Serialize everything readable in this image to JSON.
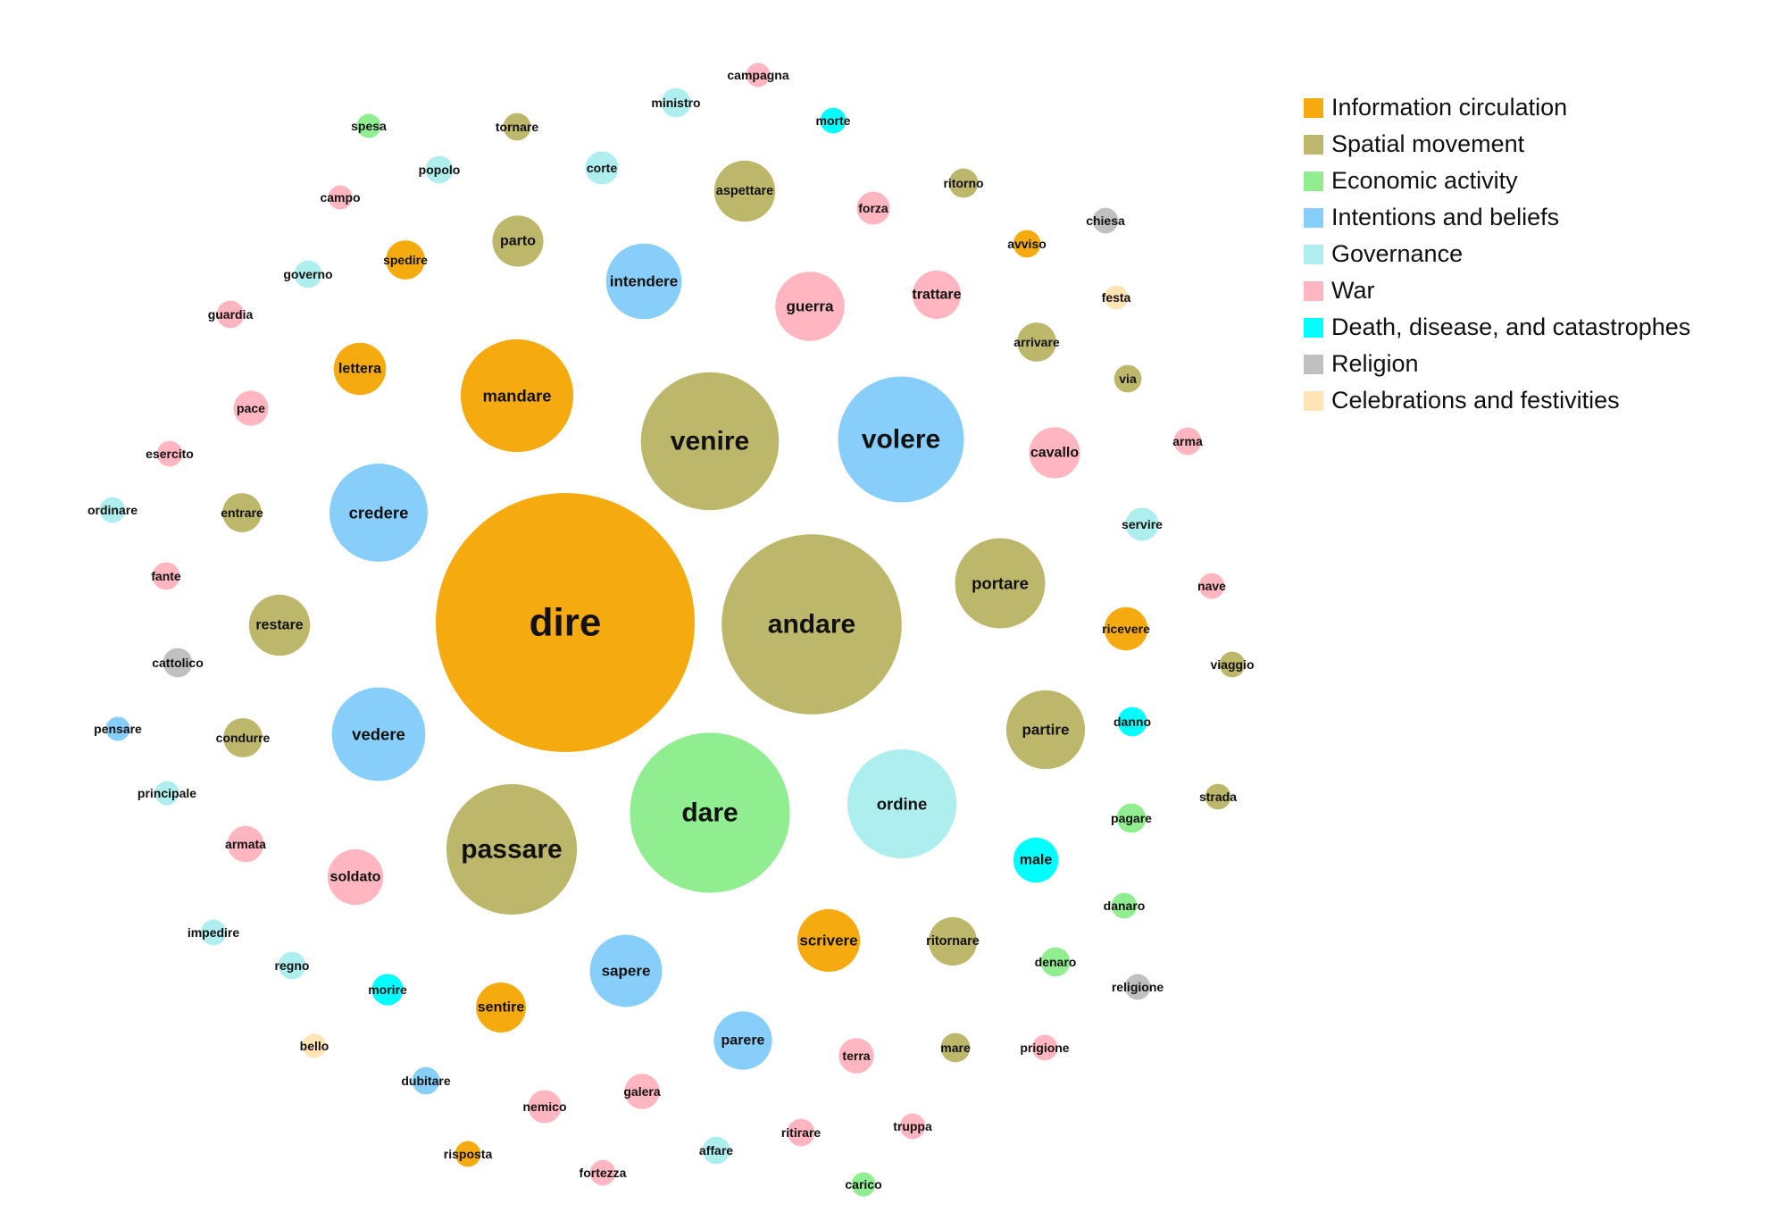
{
  "chart_data": {
    "type": "bubble",
    "categories": [
      {
        "name": "Information circulation",
        "color": "#F5AB10"
      },
      {
        "name": "Spatial movement",
        "color": "#BDB76B"
      },
      {
        "name": "Economic activity",
        "color": "#90EE90"
      },
      {
        "name": "Intentions and beliefs",
        "color": "#87CEFA"
      },
      {
        "name": "Governance",
        "color": "#AFEEEE"
      },
      {
        "name": "War",
        "color": "#FFB6C1"
      },
      {
        "name": "Death, disease, and catastrophes",
        "color": "#00FFFF"
      },
      {
        "name": "Religion",
        "color": "#C0C0C0"
      },
      {
        "name": "Celebrations and festivities",
        "color": "#FFE4B5"
      }
    ],
    "words": [
      {
        "word": "dire",
        "category": "Information circulation",
        "size": 100
      },
      {
        "word": "andare",
        "category": "Spatial movement",
        "size": 69.5
      },
      {
        "word": "dare",
        "category": "Economic activity",
        "size": 61.8
      },
      {
        "word": "venire",
        "category": "Spatial movement",
        "size": 53.3
      },
      {
        "word": "ordine",
        "category": "Governance",
        "size": 42.1
      },
      {
        "word": "passare",
        "category": "Spatial movement",
        "size": 50.4
      },
      {
        "word": "volere",
        "category": "Intentions and beliefs",
        "size": 48.6
      },
      {
        "word": "mandare",
        "category": "Information circulation",
        "size": 43.5
      },
      {
        "word": "credere",
        "category": "Intentions and beliefs",
        "size": 37.9
      },
      {
        "word": "vedere",
        "category": "Intentions and beliefs",
        "size": 36.1
      },
      {
        "word": "portare",
        "category": "Spatial movement",
        "size": 34.8
      },
      {
        "word": "partire",
        "category": "Spatial movement",
        "size": 30.4
      },
      {
        "word": "sapere",
        "category": "Intentions and beliefs",
        "size": 27.9
      },
      {
        "word": "intendere",
        "category": "Intentions and beliefs",
        "size": 29.2
      },
      {
        "word": "guerra",
        "category": "War",
        "size": 26.7
      },
      {
        "word": "restare",
        "category": "Spatial movement",
        "size": 23.6
      },
      {
        "word": "aspettare",
        "category": "Spatial movement",
        "size": 23.6
      },
      {
        "word": "scrivere",
        "category": "Information circulation",
        "size": 24.2
      },
      {
        "word": "parere",
        "category": "Intentions and beliefs",
        "size": 22.5
      },
      {
        "word": "soldato",
        "category": "War",
        "size": 21.5
      },
      {
        "word": "ritornare",
        "category": "Spatial movement",
        "size": 18.7
      },
      {
        "word": "parto",
        "category": "Spatial movement",
        "size": 19.7
      },
      {
        "word": "trattare",
        "category": "War",
        "size": 18.7
      },
      {
        "word": "cavallo",
        "category": "War",
        "size": 19.7
      },
      {
        "word": "lettera",
        "category": "Information circulation",
        "size": 20.2
      },
      {
        "word": "ricevere",
        "category": "Information circulation",
        "size": 16.7
      },
      {
        "word": "sentire",
        "category": "Information circulation",
        "size": 19.3
      },
      {
        "word": "male",
        "category": "Death, disease, and catastrophes",
        "size": 17.4
      },
      {
        "word": "arrivare",
        "category": "Spatial movement",
        "size": 15.1
      },
      {
        "word": "forza",
        "category": "War",
        "size": 12.8
      },
      {
        "word": "galera",
        "category": "War",
        "size": 13.6
      },
      {
        "word": "armata",
        "category": "War",
        "size": 14.0
      },
      {
        "word": "pace",
        "category": "War",
        "size": 13.5
      },
      {
        "word": "entrare",
        "category": "Spatial movement",
        "size": 15.1
      },
      {
        "word": "condurre",
        "category": "Spatial movement",
        "size": 15.1
      },
      {
        "word": "spedire",
        "category": "Information circulation",
        "size": 15.1
      },
      {
        "word": "terra",
        "category": "War",
        "size": 13.6
      },
      {
        "word": "nemico",
        "category": "War",
        "size": 12.8
      },
      {
        "word": "servire",
        "category": "Governance",
        "size": 12.8
      },
      {
        "word": "corte",
        "category": "Governance",
        "size": 12.8
      },
      {
        "word": "ritorno",
        "category": "Spatial movement",
        "size": 11.3
      },
      {
        "word": "pagare",
        "category": "Economic activity",
        "size": 11.3
      },
      {
        "word": "ministro",
        "category": "Governance",
        "size": 11.3
      },
      {
        "word": "cattolico",
        "category": "Religion",
        "size": 11.3
      },
      {
        "word": "morire",
        "category": "Death, disease, and catastrophes",
        "size": 12.1
      },
      {
        "word": "regno",
        "category": "Governance",
        "size": 10.6
      },
      {
        "word": "tornare",
        "category": "Spatial movement",
        "size": 10.6
      },
      {
        "word": "popolo",
        "category": "Governance",
        "size": 10.6
      },
      {
        "word": "governo",
        "category": "Governance",
        "size": 10.6
      },
      {
        "word": "guardia",
        "category": "War",
        "size": 10.6
      },
      {
        "word": "esercito",
        "category": "War",
        "size": 9.9
      },
      {
        "word": "fante",
        "category": "War",
        "size": 10.6
      },
      {
        "word": "ordinare",
        "category": "Governance",
        "size": 9.9
      },
      {
        "word": "principale",
        "category": "Governance",
        "size": 9.3
      },
      {
        "word": "pensare",
        "category": "Intentions and beliefs",
        "size": 9.3
      },
      {
        "word": "impedire",
        "category": "Governance",
        "size": 9.9
      },
      {
        "word": "morte",
        "category": "Death, disease, and catastrophes",
        "size": 9.9
      },
      {
        "word": "campagna",
        "category": "War",
        "size": 9.3
      },
      {
        "word": "chiesa",
        "category": "Religion",
        "size": 9.9
      },
      {
        "word": "festa",
        "category": "Celebrations and festivities",
        "size": 9.3
      },
      {
        "word": "avviso",
        "category": "Information circulation",
        "size": 10.6
      },
      {
        "word": "via",
        "category": "Spatial movement",
        "size": 10.6
      },
      {
        "word": "arma",
        "category": "War",
        "size": 10.6
      },
      {
        "word": "nave",
        "category": "War",
        "size": 9.9
      },
      {
        "word": "viaggio",
        "category": "Spatial movement",
        "size": 9.9
      },
      {
        "word": "danno",
        "category": "Death, disease, and catastrophes",
        "size": 11.3
      },
      {
        "word": "strada",
        "category": "Spatial movement",
        "size": 9.9
      },
      {
        "word": "danaro",
        "category": "Economic activity",
        "size": 9.9
      },
      {
        "word": "denaro",
        "category": "Economic activity",
        "size": 11.3
      },
      {
        "word": "religione",
        "category": "Religion",
        "size": 9.9
      },
      {
        "word": "prigione",
        "category": "War",
        "size": 9.9
      },
      {
        "word": "mare",
        "category": "Spatial movement",
        "size": 11.3
      },
      {
        "word": "truppa",
        "category": "War",
        "size": 9.9
      },
      {
        "word": "carico",
        "category": "Economic activity",
        "size": 9.3
      },
      {
        "word": "ritirare",
        "category": "War",
        "size": 10.6
      },
      {
        "word": "affare",
        "category": "Governance",
        "size": 10.6
      },
      {
        "word": "fortezza",
        "category": "War",
        "size": 9.9
      },
      {
        "word": "risposta",
        "category": "Information circulation",
        "size": 9.9
      },
      {
        "word": "dubitare",
        "category": "Intentions and beliefs",
        "size": 10.6
      },
      {
        "word": "bello",
        "category": "Celebrations and festivities",
        "size": 9.3
      },
      {
        "word": "spesa",
        "category": "Economic activity",
        "size": 9.3
      },
      {
        "word": "campo",
        "category": "War",
        "size": 9.3
      }
    ]
  }
}
